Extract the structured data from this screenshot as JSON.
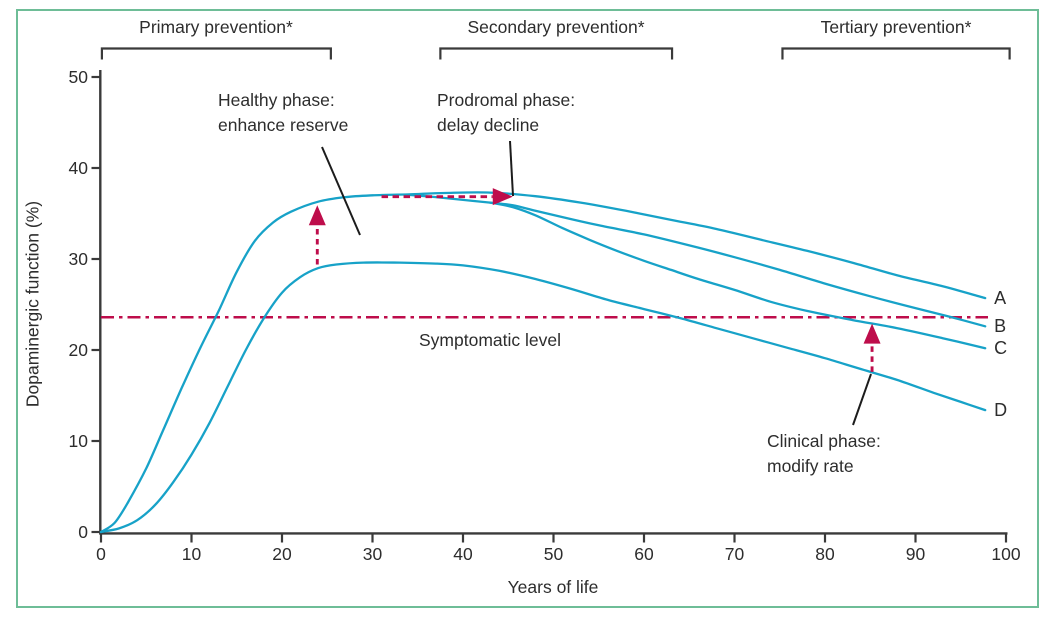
{
  "chart_data": {
    "type": "line",
    "title": "",
    "xlabel": "Years of life",
    "ylabel": "Dopaminergic function (%)",
    "xlim": [
      0,
      100
    ],
    "ylim": [
      0,
      50
    ],
    "x_ticks": [
      0,
      10,
      20,
      30,
      40,
      50,
      60,
      70,
      80,
      90,
      100
    ],
    "y_ticks": [
      0,
      10,
      20,
      30,
      40,
      50
    ],
    "grid": false,
    "phases": [
      {
        "label": "Primary prevention*",
        "years": [
          0.1,
          25.4
        ]
      },
      {
        "label": "Secondary prevention*",
        "years": [
          37.5,
          63.1
        ]
      },
      {
        "label": "Tertiary prevention*",
        "years": [
          75.3,
          100.4
        ]
      }
    ],
    "symptomatic": {
      "label": "Symptomatic level",
      "value": 23.6
    },
    "series": [
      {
        "name": "A",
        "points": [
          [
            0,
            0
          ],
          [
            1.5,
            1
          ],
          [
            3,
            3.3
          ],
          [
            5,
            7
          ],
          [
            7,
            11.5
          ],
          [
            9,
            16
          ],
          [
            11,
            20.3
          ],
          [
            13,
            24.3
          ],
          [
            15,
            28.6
          ],
          [
            17,
            32
          ],
          [
            19,
            34
          ],
          [
            21,
            35.2
          ],
          [
            24,
            36.3
          ],
          [
            27,
            36.8
          ],
          [
            30,
            37
          ],
          [
            34,
            37.1
          ],
          [
            38,
            37.25
          ],
          [
            43,
            37.3
          ],
          [
            48,
            36.9
          ],
          [
            53,
            36.2
          ],
          [
            58,
            35.3
          ],
          [
            63,
            34.3
          ],
          [
            68,
            33.3
          ],
          [
            73,
            32.1
          ],
          [
            78,
            30.9
          ],
          [
            83,
            29.6
          ],
          [
            88,
            28.2
          ],
          [
            93,
            27
          ],
          [
            97.7,
            25.7
          ]
        ]
      },
      {
        "name": "B",
        "points": [
          [
            34,
            37.05
          ],
          [
            37,
            36.8
          ],
          [
            40,
            36.5
          ],
          [
            43,
            36.2
          ],
          [
            45.5,
            35.9
          ],
          [
            48,
            35.3
          ],
          [
            51,
            34.6
          ],
          [
            55,
            33.7
          ],
          [
            60,
            32.7
          ],
          [
            65,
            31.5
          ],
          [
            70,
            30.2
          ],
          [
            75,
            28.8
          ],
          [
            80,
            27.3
          ],
          [
            85,
            25.9
          ],
          [
            90,
            24.6
          ],
          [
            94,
            23.6
          ],
          [
            97.7,
            22.6
          ]
        ]
      },
      {
        "name": "C",
        "points": [
          [
            43,
            36.2
          ],
          [
            45.5,
            35.7
          ],
          [
            48,
            34.8
          ],
          [
            51,
            33.4
          ],
          [
            54,
            32.1
          ],
          [
            57,
            30.9
          ],
          [
            60,
            29.8
          ],
          [
            63,
            28.8
          ],
          [
            66,
            27.8
          ],
          [
            70,
            26.6
          ],
          [
            74,
            25.3
          ],
          [
            78,
            24.3
          ],
          [
            83,
            23.3
          ],
          [
            88,
            22.4
          ],
          [
            93,
            21.3
          ],
          [
            97.7,
            20.2
          ]
        ]
      },
      {
        "name": "D",
        "points": [
          [
            0,
            0
          ],
          [
            2,
            0.4
          ],
          [
            4,
            1.3
          ],
          [
            6,
            3
          ],
          [
            8,
            5.5
          ],
          [
            10,
            8.5
          ],
          [
            12,
            12
          ],
          [
            14,
            16
          ],
          [
            16,
            20
          ],
          [
            18,
            23.5
          ],
          [
            20,
            26.3
          ],
          [
            22,
            28
          ],
          [
            24,
            29
          ],
          [
            26,
            29.4
          ],
          [
            29,
            29.6
          ],
          [
            33,
            29.6
          ],
          [
            37,
            29.5
          ],
          [
            40,
            29.3
          ],
          [
            44,
            28.7
          ],
          [
            48,
            27.8
          ],
          [
            52,
            26.7
          ],
          [
            56,
            25.5
          ],
          [
            60,
            24.5
          ],
          [
            64,
            23.5
          ],
          [
            68,
            22.4
          ],
          [
            72,
            21.3
          ],
          [
            76,
            20.2
          ],
          [
            80,
            19.1
          ],
          [
            84,
            17.9
          ],
          [
            88,
            16.7
          ],
          [
            92,
            15.3
          ],
          [
            95,
            14.3
          ],
          [
            97.7,
            13.4
          ]
        ]
      }
    ],
    "annotations": [
      {
        "id": "healthy-phase",
        "lines": [
          "Healthy phase:",
          "enhance reserve"
        ],
        "arrow": {
          "dir": "up",
          "x": 23.9,
          "from": 29.4,
          "to": 35.9
        }
      },
      {
        "id": "prodromal-phase",
        "lines": [
          "Prodromal phase:",
          "delay decline"
        ],
        "arrow": {
          "dir": "right",
          "y": 36.85,
          "from": 31.0,
          "to": 45.5
        }
      },
      {
        "id": "clinical-phase",
        "lines": [
          "Clinical phase:",
          "modify rate"
        ],
        "arrow": {
          "dir": "up",
          "x": 85.2,
          "from": 17.6,
          "to": 22.9
        }
      }
    ]
  },
  "colors": {
    "curve": "#17a2c8",
    "accent": "#be0d4b",
    "axis": "#3a3a3a",
    "frame": "#6ebd97",
    "text": "#2d2d2d"
  }
}
